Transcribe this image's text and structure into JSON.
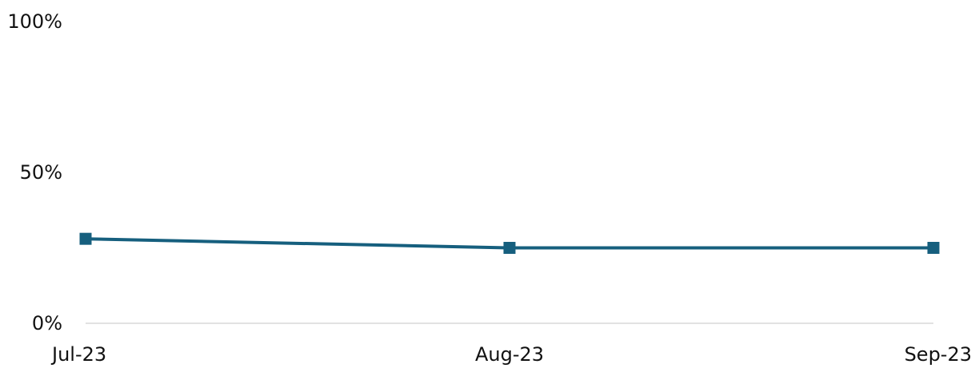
{
  "chart_data": {
    "type": "line",
    "title": "",
    "xlabel": "",
    "ylabel": "",
    "categories": [
      "Jul-23",
      "Aug-23",
      "Sep-23"
    ],
    "series": [
      {
        "values": [
          28,
          25,
          25
        ],
        "color": "#165F7E",
        "marker": "square"
      }
    ],
    "ylim": [
      0,
      100
    ],
    "yticks": [
      {
        "value": 0,
        "label": "0%"
      },
      {
        "value": 50,
        "label": "50%"
      },
      {
        "value": 100,
        "label": "100%"
      }
    ],
    "grid": false,
    "baseline_color": "#D9D9D9",
    "legend": "none"
  }
}
